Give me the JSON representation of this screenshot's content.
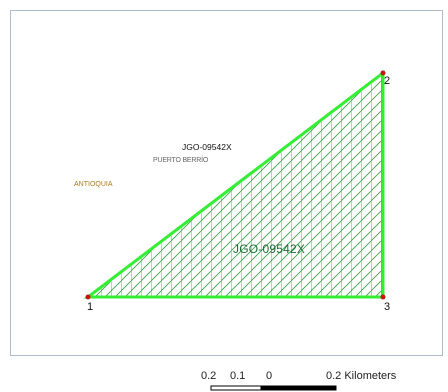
{
  "map": {
    "parcel_code_top": "JGO-09542X",
    "municipality": "PUERTO BERRÍO",
    "department": "ANTIOQUIA",
    "parcel_code_center": "JGO-09542X",
    "vertices": [
      {
        "label": "1"
      },
      {
        "label": "2"
      },
      {
        "label": "3"
      }
    ],
    "colors": {
      "parcel_outline": "#33ee33",
      "parcel_hatch": "#2a9a3a",
      "vertex_marker": "#cc1111",
      "department_label": "#b07a18",
      "frame_border": "#a9bcd0"
    }
  },
  "scalebar": {
    "ticks": [
      "0.2",
      "0.1",
      "0",
      "0.2 Kilometers"
    ]
  }
}
